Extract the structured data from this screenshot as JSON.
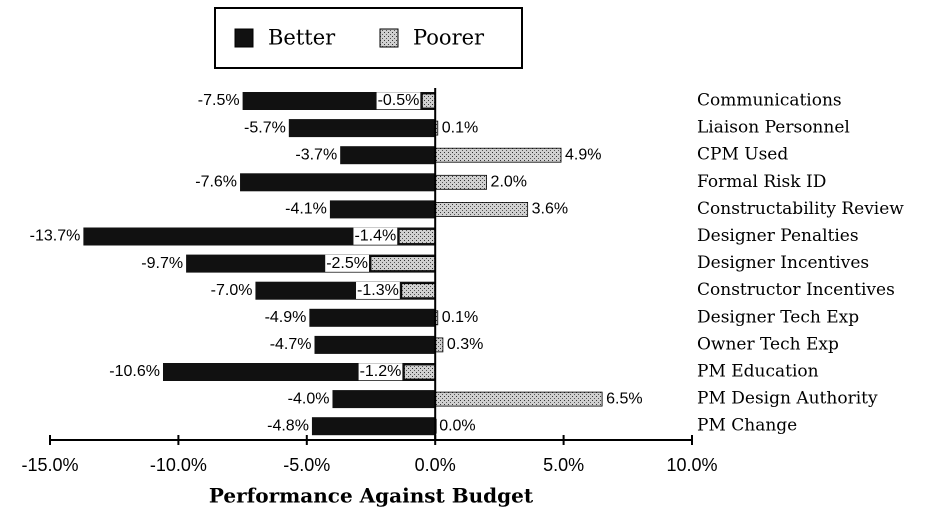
{
  "chart_data": {
    "type": "bar",
    "orientation": "horizontal",
    "x_label": "Performance Against Budget",
    "categories": [
      "Communications",
      "Liaison Personnel",
      "CPM Used",
      "Formal Risk ID",
      "Constructability Review",
      "Designer Penalties",
      "Designer Incentives",
      "Constructor Incentives",
      "Designer Tech Exp",
      "Owner Tech Exp",
      "PM Education",
      "PM Design Authority",
      "PM Change"
    ],
    "series": [
      {
        "name": "Better",
        "color": "#111111",
        "values": [
          -7.5,
          -5.7,
          -3.7,
          -7.6,
          -4.1,
          -13.7,
          -9.7,
          -7.0,
          -4.9,
          -4.7,
          -10.6,
          -4.0,
          -4.8
        ],
        "value_labels": [
          "-7.5%",
          "-5.7%",
          "-3.7%",
          "-7.6%",
          "-4.1%",
          "-13.7%",
          "-9.7%",
          "-7.0%",
          "-4.9%",
          "-4.7%",
          "-10.6%",
          "-4.0%",
          "-4.8%"
        ]
      },
      {
        "name": "Poorer",
        "color": "#b8b8b8",
        "values": [
          -0.5,
          0.1,
          4.9,
          2.0,
          3.6,
          -1.4,
          -2.5,
          -1.3,
          0.1,
          0.3,
          -1.2,
          6.5,
          0.0
        ],
        "value_labels": [
          "-0.5%",
          "0.1%",
          "4.9%",
          "2.0%",
          "3.6%",
          "-1.4%",
          "-2.5%",
          "-1.3%",
          "0.1%",
          "0.3%",
          "-1.2%",
          "6.5%",
          "0.0%"
        ]
      }
    ],
    "xlim": [
      -15,
      10
    ],
    "xticks": [
      {
        "value": -15,
        "label": "-15.0%"
      },
      {
        "value": -10,
        "label": "-10.0%"
      },
      {
        "value": -5,
        "label": "-5.0%"
      },
      {
        "value": 0,
        "label": "0.0%"
      },
      {
        "value": 5,
        "label": "5.0%"
      },
      {
        "value": 10,
        "label": "10.0%"
      }
    ],
    "legend": "top"
  }
}
